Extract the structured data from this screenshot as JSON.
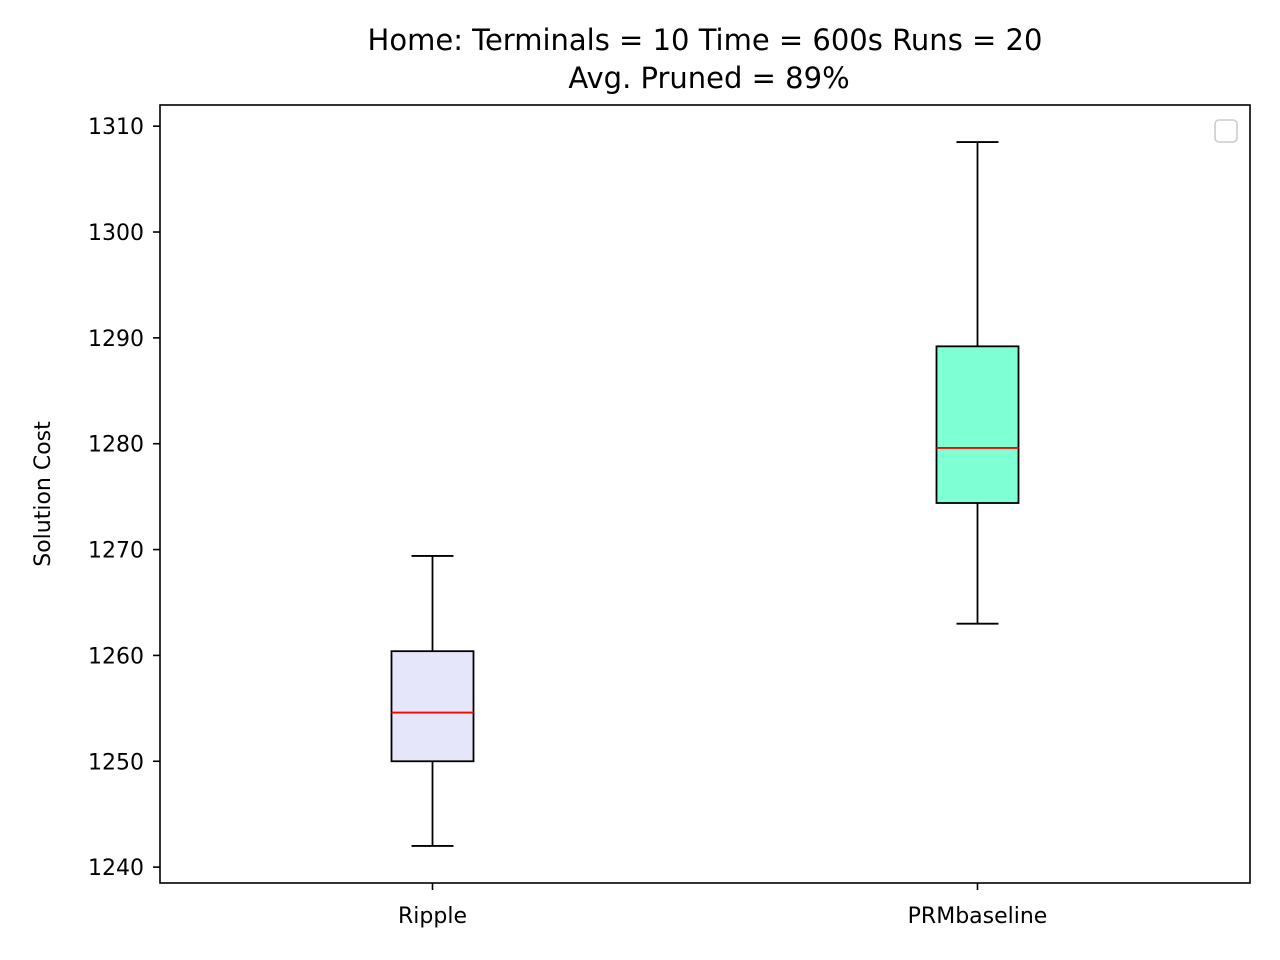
{
  "chart_data": {
    "type": "box",
    "title": "Home:  Terminals = 10  Time = 600s  Runs = 20",
    "subtitle": "Avg. Pruned = 89%",
    "xlabel": "",
    "ylabel": "Solution Cost",
    "ylim": [
      1238.5,
      1312
    ],
    "yticks": [
      1240,
      1250,
      1260,
      1270,
      1280,
      1290,
      1300,
      1310
    ],
    "categories": [
      "Ripple",
      "PRMbaseline"
    ],
    "boxes": [
      {
        "label": "Ripple",
        "whisker_low": 1242.0,
        "q1": 1250.0,
        "median": 1254.6,
        "q3": 1260.4,
        "whisker_high": 1269.4,
        "fill": "#e6e6fa"
      },
      {
        "label": "PRMbaseline",
        "whisker_low": 1263.0,
        "q1": 1274.4,
        "median": 1279.6,
        "q3": 1289.2,
        "whisker_high": 1308.5,
        "fill": "#7fffd4"
      }
    ],
    "median_color": "#ff0000",
    "grid": false,
    "legend": {
      "placement": "top-right",
      "entries": []
    }
  }
}
